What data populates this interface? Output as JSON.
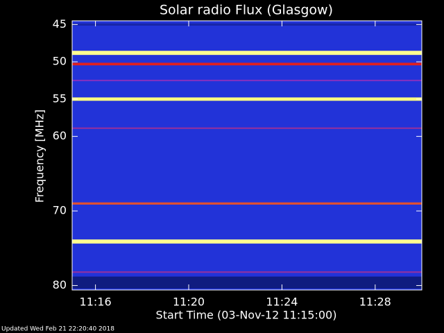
{
  "chart_data": {
    "type": "spectrogram",
    "title": "Solar radio Flux (Glasgow)",
    "y_label": "Frequency [MHz]",
    "x_label": "Start Time (03-Nov-12 11:15:00)",
    "footer": "Updated Wed Feb 21 22:20:40 2018",
    "background_color": "#2233d8",
    "y_inverted": true,
    "ylim": [
      44.5,
      80.6
    ],
    "yticks": [
      45,
      50,
      55,
      60,
      70,
      80
    ],
    "xlim": [
      0,
      15
    ],
    "xticks": [
      {
        "value": 1,
        "label": "11:16"
      },
      {
        "value": 5,
        "label": "11:20"
      },
      {
        "value": 9,
        "label": "11:24"
      },
      {
        "value": 13,
        "label": "11:28"
      }
    ],
    "bands": [
      {
        "frequency": 45.0,
        "bandwidth": 0.3,
        "color": "#1826a8"
      },
      {
        "frequency": 48.8,
        "bandwidth": 0.55,
        "color": "#ffff90"
      },
      {
        "frequency": 50.3,
        "bandwidth": 0.35,
        "color": "#e02020"
      },
      {
        "frequency": 52.5,
        "bandwidth": 0.2,
        "color": "#8030c0"
      },
      {
        "frequency": 55.0,
        "bandwidth": 0.45,
        "color": "#ffff80"
      },
      {
        "frequency": 58.9,
        "bandwidth": 0.2,
        "color": "#9030a0"
      },
      {
        "frequency": 69.0,
        "bandwidth": 0.3,
        "color": "#e05030"
      },
      {
        "frequency": 74.1,
        "bandwidth": 0.55,
        "color": "#ffff90"
      },
      {
        "frequency": 78.2,
        "bandwidth": 0.2,
        "color": "#9030a0"
      },
      {
        "frequency": 79.6,
        "bandwidth": 1.6,
        "color": "#101c80"
      }
    ]
  }
}
